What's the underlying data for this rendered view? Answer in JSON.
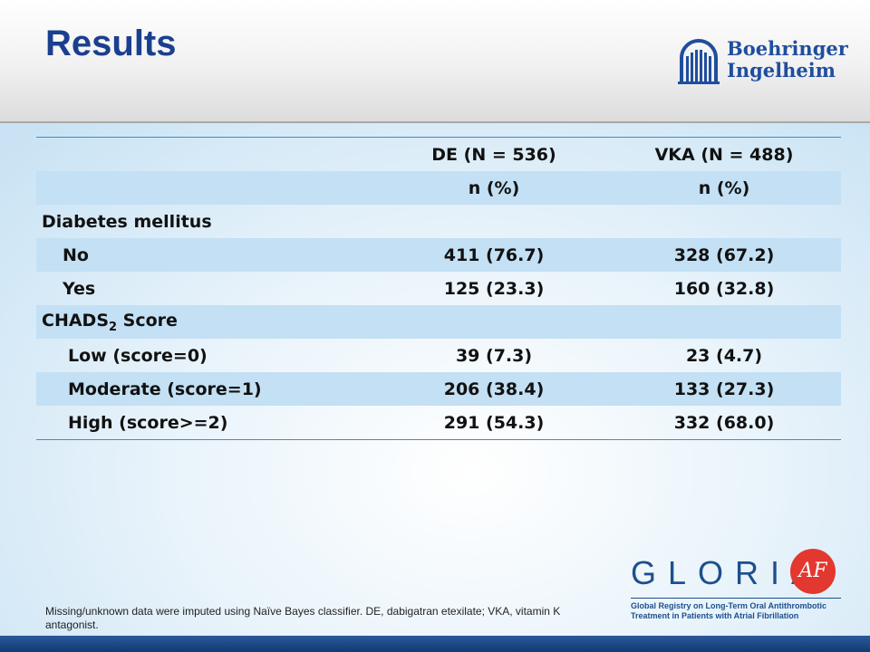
{
  "header": {
    "title": "Results",
    "logo_line1": "Boehringer",
    "logo_line2": "Ingelheim"
  },
  "table": {
    "columns": [
      "",
      "DE (N = 536)",
      "VKA (N = 488)"
    ],
    "subheader": [
      "",
      "n (%)",
      "n (%)"
    ],
    "rows": [
      {
        "label": "Diabetes mellitus",
        "de": "",
        "vka": ""
      },
      {
        "label": "No",
        "de": "411 (76.7)",
        "vka": "328 (67.2)"
      },
      {
        "label": "Yes",
        "de": "125 (23.3)",
        "vka": "160 (32.8)"
      },
      {
        "label_main": "CHADS",
        "label_sub": "2",
        "label_tail": " Score",
        "de": "",
        "vka": ""
      },
      {
        "label": "Low (score=0)",
        "de": "39 (7.3)",
        "vka": "23 (4.7)"
      },
      {
        "label": "Moderate (score=1)",
        "de": "206 (38.4)",
        "vka": "133 (27.3)"
      },
      {
        "label": "High (score>=2)",
        "de": "291 (54.3)",
        "vka": "332 (68.0)"
      }
    ]
  },
  "footnote": "Missing/unknown data were imputed using Naïve Bayes classifier. DE, dabigatran etexilate; VKA, vitamin K antagonist.",
  "gloria_logo": {
    "word": "GLORIA",
    "badge": "AF",
    "subtitle_line1": "Global Registry on Long-Term Oral Antithrombotic",
    "subtitle_line2": "Treatment in Patients with Atrial Fibrillation"
  },
  "colors": {
    "title": "#1b3f8f",
    "band": "#c3e0f4",
    "rule": "#3b8ecb",
    "bottom_bar": "#0f3a75",
    "af_badge": "#e3382f"
  }
}
